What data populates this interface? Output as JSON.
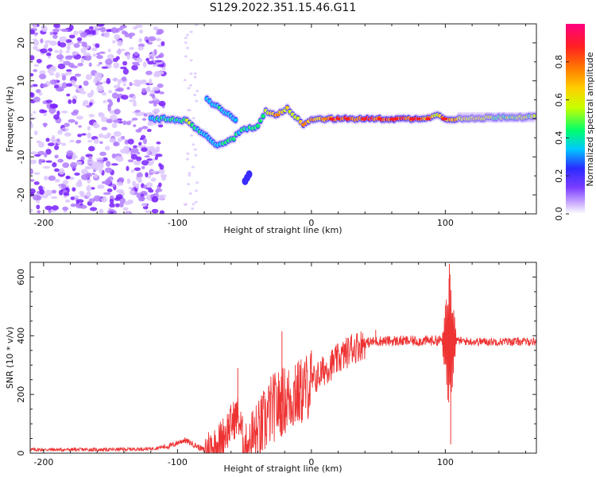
{
  "title": "S129.2022.351.15.46.G11",
  "chart_data": [
    {
      "type": "heatmap",
      "xlabel": "Height of straight line (km)",
      "ylabel": "Frequency (Hz)",
      "xlim": [
        -210,
        168
      ],
      "ylim": [
        -25,
        25
      ],
      "x_ticks": [
        -200,
        -100,
        0,
        100
      ],
      "y_ticks": [
        -20,
        -10,
        0,
        10,
        20
      ],
      "colorbar": {
        "label": "Normalized spectral amplitude",
        "range": [
          0,
          1
        ],
        "ticks": [
          0.0,
          0.2,
          0.4,
          0.6,
          0.8
        ],
        "tick_labels": [
          "0.0",
          "0.2",
          "0.4",
          "0.6",
          "0.8"
        ],
        "colormap": [
          "#ffffff",
          "#7a3cff",
          "#2b2bff",
          "#00c8ff",
          "#00ff6a",
          "#c8ff00",
          "#ffd000",
          "#ff8000",
          "#ff2020",
          "#ff0080"
        ]
      },
      "noise_region_x": [
        -210,
        -110
      ],
      "signal_track": [
        {
          "x": -120,
          "f": 0,
          "a": 0.35
        },
        {
          "x": -110,
          "f": 0,
          "a": 0.4
        },
        {
          "x": -100,
          "f": -0.5,
          "a": 0.45
        },
        {
          "x": -93,
          "f": -0.5,
          "a": 0.55
        },
        {
          "x": -85,
          "f": -3,
          "a": 0.4
        },
        {
          "x": -75,
          "f": -5.5,
          "a": 0.35
        },
        {
          "x": -70,
          "f": -7,
          "a": 0.3
        },
        {
          "x": -64,
          "f": -6,
          "a": 0.4
        },
        {
          "x": -58,
          "f": -5,
          "a": 0.45
        },
        {
          "x": -52,
          "f": -3,
          "a": 0.4
        },
        {
          "x": -46,
          "f": -2.5,
          "a": 0.45
        },
        {
          "x": -40,
          "f": -2,
          "a": 0.5
        },
        {
          "x": -34,
          "f": 2,
          "a": 0.55
        },
        {
          "x": -25,
          "f": 1,
          "a": 0.75
        },
        {
          "x": -18,
          "f": 3,
          "a": 0.6
        },
        {
          "x": -12,
          "f": 0.5,
          "a": 0.6
        },
        {
          "x": -6,
          "f": -1.5,
          "a": 0.75
        },
        {
          "x": 0,
          "f": 0,
          "a": 0.7
        },
        {
          "x": 10,
          "f": 0,
          "a": 0.75
        },
        {
          "x": 20,
          "f": 0,
          "a": 0.85
        },
        {
          "x": 40,
          "f": 0,
          "a": 0.85
        },
        {
          "x": 60,
          "f": 0,
          "a": 0.85
        },
        {
          "x": 80,
          "f": 0,
          "a": 0.85
        },
        {
          "x": 96,
          "f": 1,
          "a": 0.6
        },
        {
          "x": 100,
          "f": 0,
          "a": 0.8
        },
        {
          "x": 120,
          "f": 0,
          "a": 0.6
        },
        {
          "x": 140,
          "f": 0.5,
          "a": 0.55
        },
        {
          "x": 168,
          "f": 0.5,
          "a": 0.55
        }
      ],
      "side_branch": [
        {
          "x": -78,
          "f": 5,
          "a": 0.35
        },
        {
          "x": -72,
          "f": 3.5,
          "a": 0.4
        },
        {
          "x": -65,
          "f": 2,
          "a": 0.35
        },
        {
          "x": -60,
          "f": 0.5,
          "a": 0.3
        },
        {
          "x": -55,
          "f": -1,
          "a": 0.25
        }
      ],
      "isolated_blob": {
        "x": -48,
        "f": -15.5,
        "a": 0.25
      }
    },
    {
      "type": "line",
      "xlabel": "Height of straight line (km)",
      "ylabel": "SNR (10 * v/v)",
      "xlim": [
        -210,
        168
      ],
      "ylim": [
        0,
        650
      ],
      "x_ticks": [
        -200,
        -100,
        0,
        100
      ],
      "y_ticks": [
        0,
        200,
        400,
        600
      ],
      "color": "#ee3333",
      "envelope": [
        {
          "x": -210,
          "y": 12
        },
        {
          "x": -150,
          "y": 12
        },
        {
          "x": -120,
          "y": 15
        },
        {
          "x": -105,
          "y": 25
        },
        {
          "x": -95,
          "y": 45
        },
        {
          "x": -88,
          "y": 30
        },
        {
          "x": -80,
          "y": 10
        },
        {
          "x": -70,
          "y": 30
        },
        {
          "x": -60,
          "y": 100
        },
        {
          "x": -55,
          "y": 130
        },
        {
          "x": -50,
          "y": 30
        },
        {
          "x": -40,
          "y": 60
        },
        {
          "x": -30,
          "y": 150
        },
        {
          "x": -20,
          "y": 180
        },
        {
          "x": -10,
          "y": 200
        },
        {
          "x": 0,
          "y": 240
        },
        {
          "x": 10,
          "y": 285
        },
        {
          "x": 20,
          "y": 320
        },
        {
          "x": 30,
          "y": 355
        },
        {
          "x": 40,
          "y": 375
        },
        {
          "x": 50,
          "y": 382
        },
        {
          "x": 60,
          "y": 382
        },
        {
          "x": 80,
          "y": 382
        },
        {
          "x": 100,
          "y": 385
        },
        {
          "x": 120,
          "y": 380
        },
        {
          "x": 168,
          "y": 380
        }
      ],
      "peaks": [
        {
          "x": -55,
          "y": 290
        },
        {
          "x": -22,
          "y": 415
        },
        {
          "x": -12,
          "y": 300
        },
        {
          "x": 0,
          "y": 350
        },
        {
          "x": 30,
          "y": 405
        },
        {
          "x": 48,
          "y": 420
        },
        {
          "x": 103,
          "y": 645
        },
        {
          "x": 104,
          "y": 30
        }
      ]
    }
  ]
}
